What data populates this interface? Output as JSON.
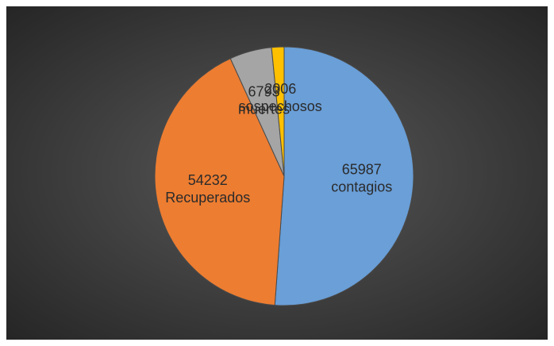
{
  "chart_data": {
    "type": "pie",
    "categories": [
      "contagios",
      "Recuperados",
      "muertes",
      "sospechosos"
    ],
    "values": [
      65987,
      54232,
      6793,
      2006
    ],
    "colors": [
      "#6a9fd8",
      "#ed7d31",
      "#a5a5a5",
      "#ffc000"
    ]
  }
}
